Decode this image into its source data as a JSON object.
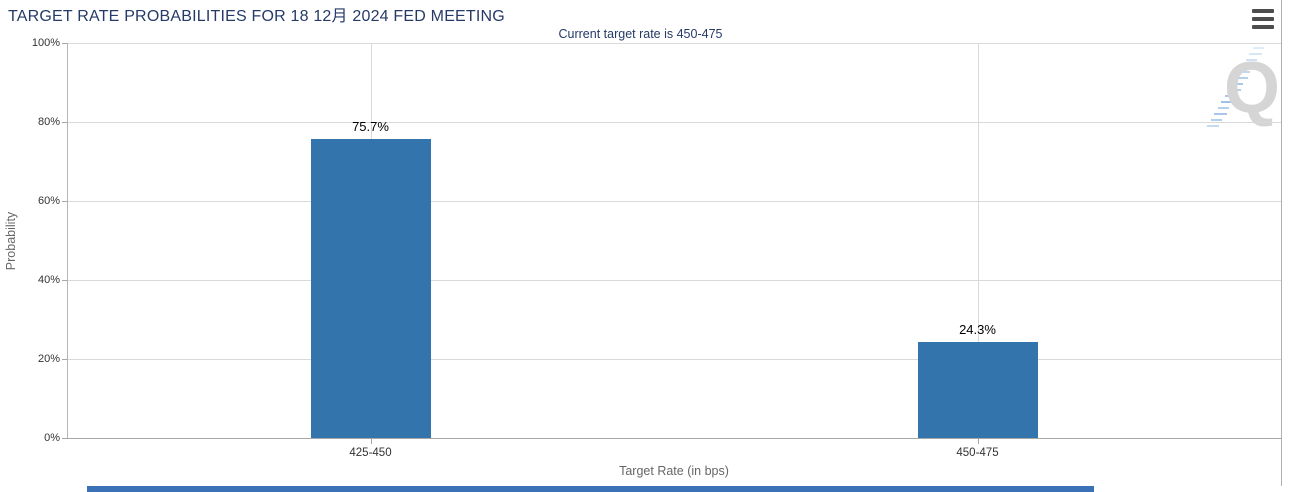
{
  "header": {
    "title": "TARGET RATE PROBABILITIES FOR 18 12月 2024 FED MEETING"
  },
  "toolbar": {
    "menu_icon": "hamburger-icon"
  },
  "watermark": {
    "letter": "Q"
  },
  "colors": {
    "bar": "#3374ad",
    "title_text": "#263a68",
    "gridline": "#d9d9d9",
    "axis_line": "#a6a6a6",
    "bottom_strip": "#3b72b7"
  },
  "chart_data": {
    "type": "bar",
    "title": "TARGET RATE PROBABILITIES FOR 18 12月 2024 FED MEETING",
    "subtitle": "Current target rate is 450-475",
    "categories": [
      "425-450",
      "450-475"
    ],
    "values": [
      75.7,
      24.3
    ],
    "value_labels": [
      "75.7%",
      "24.3%"
    ],
    "xlabel": "Target Rate (in bps)",
    "ylabel": "Probability",
    "ylim": [
      0,
      100
    ],
    "ytick_step": 20,
    "ytick_labels": [
      "0%",
      "20%",
      "40%",
      "60%",
      "80%",
      "100%"
    ],
    "grid": true,
    "legend": "none",
    "bar_color": "#3374ad"
  }
}
